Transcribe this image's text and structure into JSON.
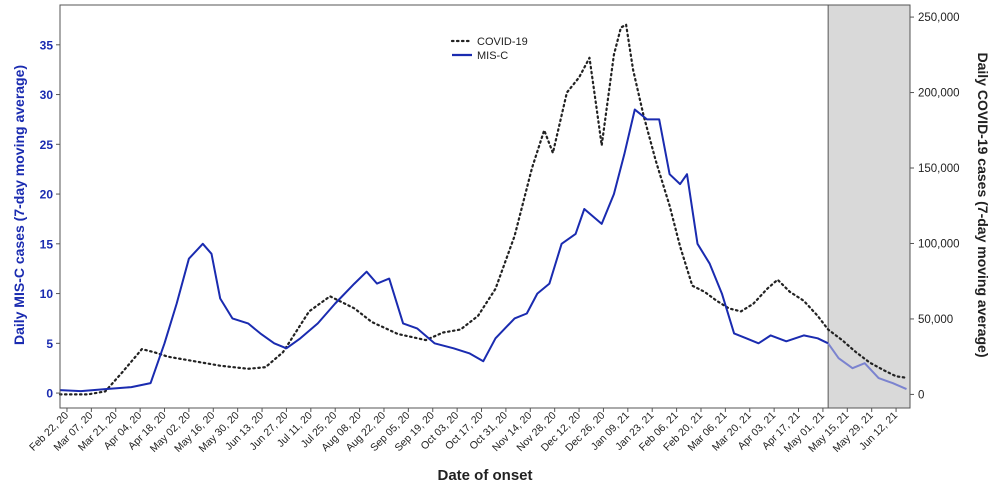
{
  "chart_data": {
    "type": "line",
    "xlabel": "Date of onset",
    "ylabel_left": "Daily MIS-C cases (7-day moving average)",
    "ylabel_right": "Daily COVID-19 cases (7-day moving average)",
    "left_ylim": [
      -1.5,
      39
    ],
    "right_ylim": [
      -9000,
      258000
    ],
    "left_ticks": [
      0,
      5,
      10,
      15,
      20,
      25,
      30,
      35
    ],
    "right_ticks": [
      0,
      50000,
      100000,
      150000,
      200000,
      250000
    ],
    "right_tick_labels": [
      "0",
      "50,000",
      "100,000",
      "150,000",
      "200,000",
      "250,000"
    ],
    "x_range": [
      "2020-02-18",
      "2021-06-20"
    ],
    "x_ticks": [
      "2020-02-22",
      "2020-03-07",
      "2020-03-21",
      "2020-04-04",
      "2020-04-18",
      "2020-05-02",
      "2020-05-16",
      "2020-05-30",
      "2020-06-13",
      "2020-06-27",
      "2020-07-11",
      "2020-07-25",
      "2020-08-08",
      "2020-08-22",
      "2020-09-05",
      "2020-09-19",
      "2020-10-03",
      "2020-10-17",
      "2020-10-31",
      "2020-11-14",
      "2020-11-28",
      "2020-12-12",
      "2020-12-26",
      "2021-01-09",
      "2021-01-23",
      "2021-02-06",
      "2021-02-20",
      "2021-03-06",
      "2021-03-20",
      "2021-04-03",
      "2021-04-17",
      "2021-05-01",
      "2021-05-15",
      "2021-05-29",
      "2021-06-12"
    ],
    "x_tick_labels": [
      "Feb 22, 20",
      "Mar 07, 20",
      "Mar 21, 20",
      "Apr 04, 20",
      "Apr 18, 20",
      "May 02, 20",
      "May 16, 20",
      "May 30, 20",
      "Jun 13, 20",
      "Jun 27, 20",
      "Jul 11, 20",
      "Jul 25, 20",
      "Aug 08, 20",
      "Aug 22, 20",
      "Sep 05, 20",
      "Sep 19, 20",
      "Oct 03, 20",
      "Oct 17, 20",
      "Oct 31, 20",
      "Nov 14, 20",
      "Nov 28, 20",
      "Dec 12, 20",
      "Dec 26, 20",
      "Jan 09, 21",
      "Jan 23, 21",
      "Feb 06, 21",
      "Feb 20, 21",
      "Mar 06, 21",
      "Mar 20, 21",
      "Apr 03, 21",
      "Apr 17, 21",
      "May 01, 21",
      "May 15, 21",
      "May 29, 21",
      "Jun 12, 21"
    ],
    "shaded_region": {
      "start": "2021-05-04",
      "end": "2021-06-20",
      "color": "#d9d9d9"
    },
    "legend": {
      "position": "top-center",
      "entries": [
        "COVID-19",
        "MIS-C"
      ]
    },
    "grid": false,
    "series": [
      {
        "name": "COVID-19",
        "axis": "right",
        "style": "dotted",
        "color": "#222222",
        "points": [
          [
            "2020-02-18",
            0
          ],
          [
            "2020-03-05",
            0
          ],
          [
            "2020-03-15",
            2000
          ],
          [
            "2020-03-25",
            15000
          ],
          [
            "2020-04-05",
            30000
          ],
          [
            "2020-04-12",
            28000
          ],
          [
            "2020-04-20",
            25000
          ],
          [
            "2020-05-05",
            22000
          ],
          [
            "2020-05-20",
            19000
          ],
          [
            "2020-06-05",
            17000
          ],
          [
            "2020-06-15",
            18000
          ],
          [
            "2020-06-25",
            28000
          ],
          [
            "2020-07-10",
            55000
          ],
          [
            "2020-07-22",
            65000
          ],
          [
            "2020-08-05",
            57000
          ],
          [
            "2020-08-15",
            48000
          ],
          [
            "2020-08-30",
            40000
          ],
          [
            "2020-09-15",
            36000
          ],
          [
            "2020-09-25",
            41000
          ],
          [
            "2020-10-05",
            43000
          ],
          [
            "2020-10-15",
            52000
          ],
          [
            "2020-10-25",
            70000
          ],
          [
            "2020-11-05",
            105000
          ],
          [
            "2020-11-15",
            150000
          ],
          [
            "2020-11-22",
            175000
          ],
          [
            "2020-11-27",
            160000
          ],
          [
            "2020-12-05",
            200000
          ],
          [
            "2020-12-12",
            210000
          ],
          [
            "2020-12-18",
            223000
          ],
          [
            "2020-12-22",
            190000
          ],
          [
            "2020-12-25",
            165000
          ],
          [
            "2021-01-01",
            225000
          ],
          [
            "2021-01-05",
            243000
          ],
          [
            "2021-01-08",
            245000
          ],
          [
            "2021-01-12",
            215000
          ],
          [
            "2021-01-18",
            185000
          ],
          [
            "2021-01-25",
            155000
          ],
          [
            "2021-02-02",
            125000
          ],
          [
            "2021-02-08",
            98000
          ],
          [
            "2021-02-15",
            72000
          ],
          [
            "2021-02-22",
            68000
          ],
          [
            "2021-03-01",
            62000
          ],
          [
            "2021-03-08",
            57000
          ],
          [
            "2021-03-15",
            55000
          ],
          [
            "2021-03-22",
            60000
          ],
          [
            "2021-03-30",
            70000
          ],
          [
            "2021-04-05",
            76000
          ],
          [
            "2021-04-12",
            68000
          ],
          [
            "2021-04-20",
            62000
          ],
          [
            "2021-04-28",
            52000
          ],
          [
            "2021-05-04",
            43000
          ],
          [
            "2021-05-12",
            36000
          ],
          [
            "2021-05-20",
            28000
          ],
          [
            "2021-05-28",
            21000
          ],
          [
            "2021-06-05",
            16000
          ],
          [
            "2021-06-12",
            12000
          ],
          [
            "2021-06-18",
            11000
          ]
        ]
      },
      {
        "name": "MIS-C",
        "axis": "left",
        "style": "solid",
        "color": "#1a2bb0",
        "faded_color": "#7b83cf",
        "faded_after": "2021-05-04",
        "points": [
          [
            "2020-02-18",
            0.3
          ],
          [
            "2020-03-01",
            0.2
          ],
          [
            "2020-03-15",
            0.4
          ],
          [
            "2020-03-30",
            0.6
          ],
          [
            "2020-04-10",
            1.0
          ],
          [
            "2020-04-18",
            5.0
          ],
          [
            "2020-04-25",
            9.0
          ],
          [
            "2020-05-02",
            13.5
          ],
          [
            "2020-05-10",
            15.0
          ],
          [
            "2020-05-15",
            14.0
          ],
          [
            "2020-05-20",
            9.5
          ],
          [
            "2020-05-27",
            7.5
          ],
          [
            "2020-06-05",
            7.0
          ],
          [
            "2020-06-12",
            6.0
          ],
          [
            "2020-06-20",
            5.0
          ],
          [
            "2020-06-27",
            4.5
          ],
          [
            "2020-07-05",
            5.5
          ],
          [
            "2020-07-15",
            7.0
          ],
          [
            "2020-07-25",
            9.0
          ],
          [
            "2020-08-05",
            11.0
          ],
          [
            "2020-08-12",
            12.2
          ],
          [
            "2020-08-18",
            11.0
          ],
          [
            "2020-08-25",
            11.5
          ],
          [
            "2020-09-02",
            7.0
          ],
          [
            "2020-09-10",
            6.5
          ],
          [
            "2020-09-20",
            5.0
          ],
          [
            "2020-10-01",
            4.5
          ],
          [
            "2020-10-10",
            4.0
          ],
          [
            "2020-10-18",
            3.2
          ],
          [
            "2020-10-25",
            5.5
          ],
          [
            "2020-11-05",
            7.5
          ],
          [
            "2020-11-12",
            8.0
          ],
          [
            "2020-11-18",
            10.0
          ],
          [
            "2020-11-25",
            11.0
          ],
          [
            "2020-12-02",
            15.0
          ],
          [
            "2020-12-10",
            16.0
          ],
          [
            "2020-12-15",
            18.5
          ],
          [
            "2020-12-25",
            17.0
          ],
          [
            "2021-01-01",
            20.0
          ],
          [
            "2021-01-07",
            24.0
          ],
          [
            "2021-01-13",
            28.5
          ],
          [
            "2021-01-20",
            27.5
          ],
          [
            "2021-01-27",
            27.5
          ],
          [
            "2021-02-02",
            22.0
          ],
          [
            "2021-02-08",
            21.0
          ],
          [
            "2021-02-12",
            22.0
          ],
          [
            "2021-02-18",
            15.0
          ],
          [
            "2021-02-25",
            13.0
          ],
          [
            "2021-03-04",
            10.0
          ],
          [
            "2021-03-11",
            6.0
          ],
          [
            "2021-03-18",
            5.5
          ],
          [
            "2021-03-25",
            5.0
          ],
          [
            "2021-04-01",
            5.8
          ],
          [
            "2021-04-10",
            5.2
          ],
          [
            "2021-04-20",
            5.8
          ],
          [
            "2021-04-28",
            5.5
          ],
          [
            "2021-05-04",
            5.0
          ],
          [
            "2021-05-10",
            3.5
          ],
          [
            "2021-05-18",
            2.5
          ],
          [
            "2021-05-25",
            3.0
          ],
          [
            "2021-06-02",
            1.5
          ],
          [
            "2021-06-10",
            1.0
          ],
          [
            "2021-06-18",
            0.4
          ]
        ]
      }
    ]
  }
}
